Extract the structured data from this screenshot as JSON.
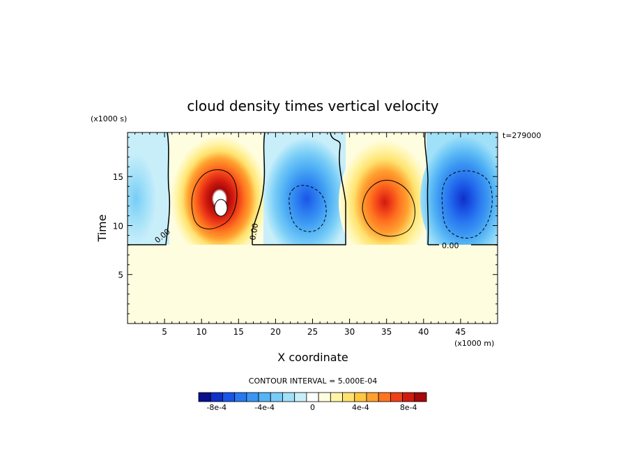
{
  "chart_data": {
    "type": "heatmap",
    "title": "cloud density times vertical velocity",
    "xlabel": "X coordinate",
    "ylabel": "Time",
    "x_unit_label": "(x1000 m)",
    "y_unit_label": "(x1000 s)",
    "time_stamp": "t=279000",
    "xlim": [
      0,
      50
    ],
    "ylim": [
      0,
      19.5
    ],
    "x_ticks": [
      5,
      10,
      15,
      20,
      25,
      30,
      35,
      40,
      45
    ],
    "y_ticks": [
      5,
      10,
      15
    ],
    "contour_interval_text": "CONTOUR INTERVAL = 5.000E-04",
    "contour_labels": [
      "0.00",
      "0.00",
      "0.00"
    ],
    "colorbar": {
      "ticks": [
        "-8e-4",
        "-4e-4",
        "0",
        "4e-4",
        "8e-4"
      ],
      "colors": [
        "#0a0f8c",
        "#1030c8",
        "#1a55e6",
        "#2a78f0",
        "#3a96f2",
        "#55b4f5",
        "#78ccf7",
        "#a0e0f8",
        "#c8eefa",
        "#ffffff",
        "#fffde0",
        "#fff4a8",
        "#ffe26e",
        "#ffc640",
        "#ffa030",
        "#ff7420",
        "#f04018",
        "#d01a10",
        "#a40808"
      ]
    },
    "regions": [
      {
        "x_range": [
          0,
          5.5
        ],
        "y_range": [
          8.3,
          19.5
        ],
        "sign": "negative",
        "extreme": -0.00025
      },
      {
        "x_range": [
          5.5,
          18
        ],
        "y_range": [
          8.3,
          19.5
        ],
        "sign": "positive",
        "center": [
          12.5,
          12
        ],
        "extreme": 0.001
      },
      {
        "x_range": [
          18,
          29.5
        ],
        "y_range": [
          8.3,
          19.5
        ],
        "sign": "negative",
        "center": [
          24.5,
          12
        ],
        "extreme": -0.00065
      },
      {
        "x_range": [
          29.5,
          41
        ],
        "y_range": [
          8.3,
          19.5
        ],
        "sign": "positive",
        "center": [
          34.5,
          11.5
        ],
        "extreme": 0.00085
      },
      {
        "x_range": [
          41,
          50
        ],
        "y_range": [
          8.3,
          19.5
        ],
        "sign": "negative",
        "center": [
          45,
          12
        ],
        "extreme": -0.00085
      },
      {
        "x_range": [
          0,
          50
        ],
        "y_range": [
          0,
          8.3
        ],
        "sign": "zero",
        "extreme": 0
      }
    ]
  }
}
